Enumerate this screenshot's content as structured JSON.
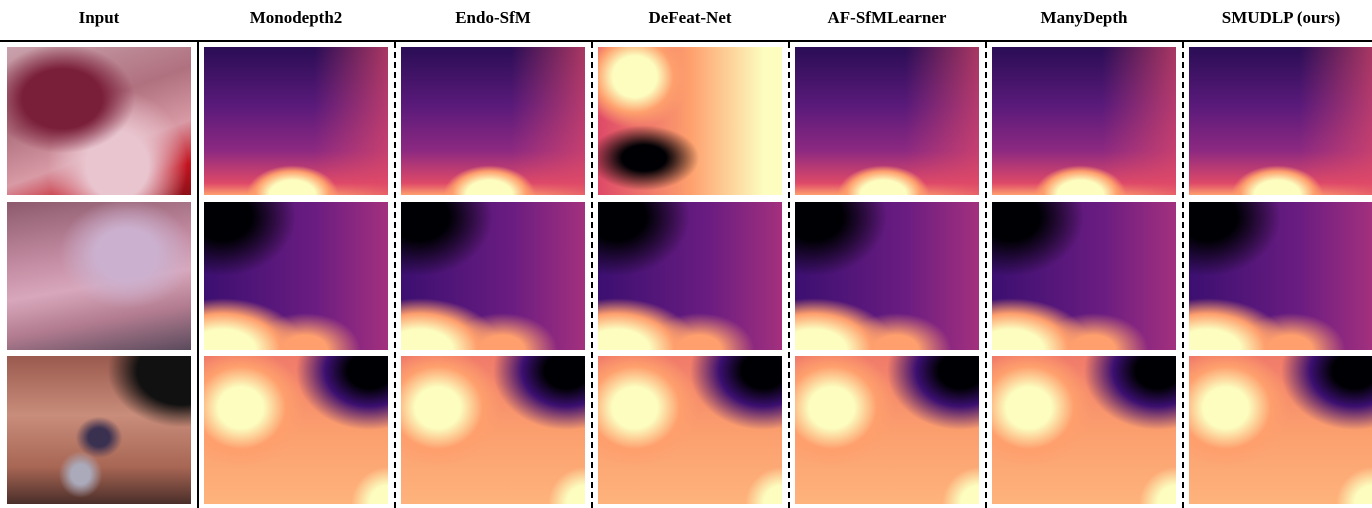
{
  "header": {
    "columns": [
      "Input",
      "Monodepth2",
      "Endo-SfM",
      "DeFeat-Net",
      "AF-SfMLearner",
      "ManyDepth",
      "SMUDLP (ours)"
    ]
  }
}
